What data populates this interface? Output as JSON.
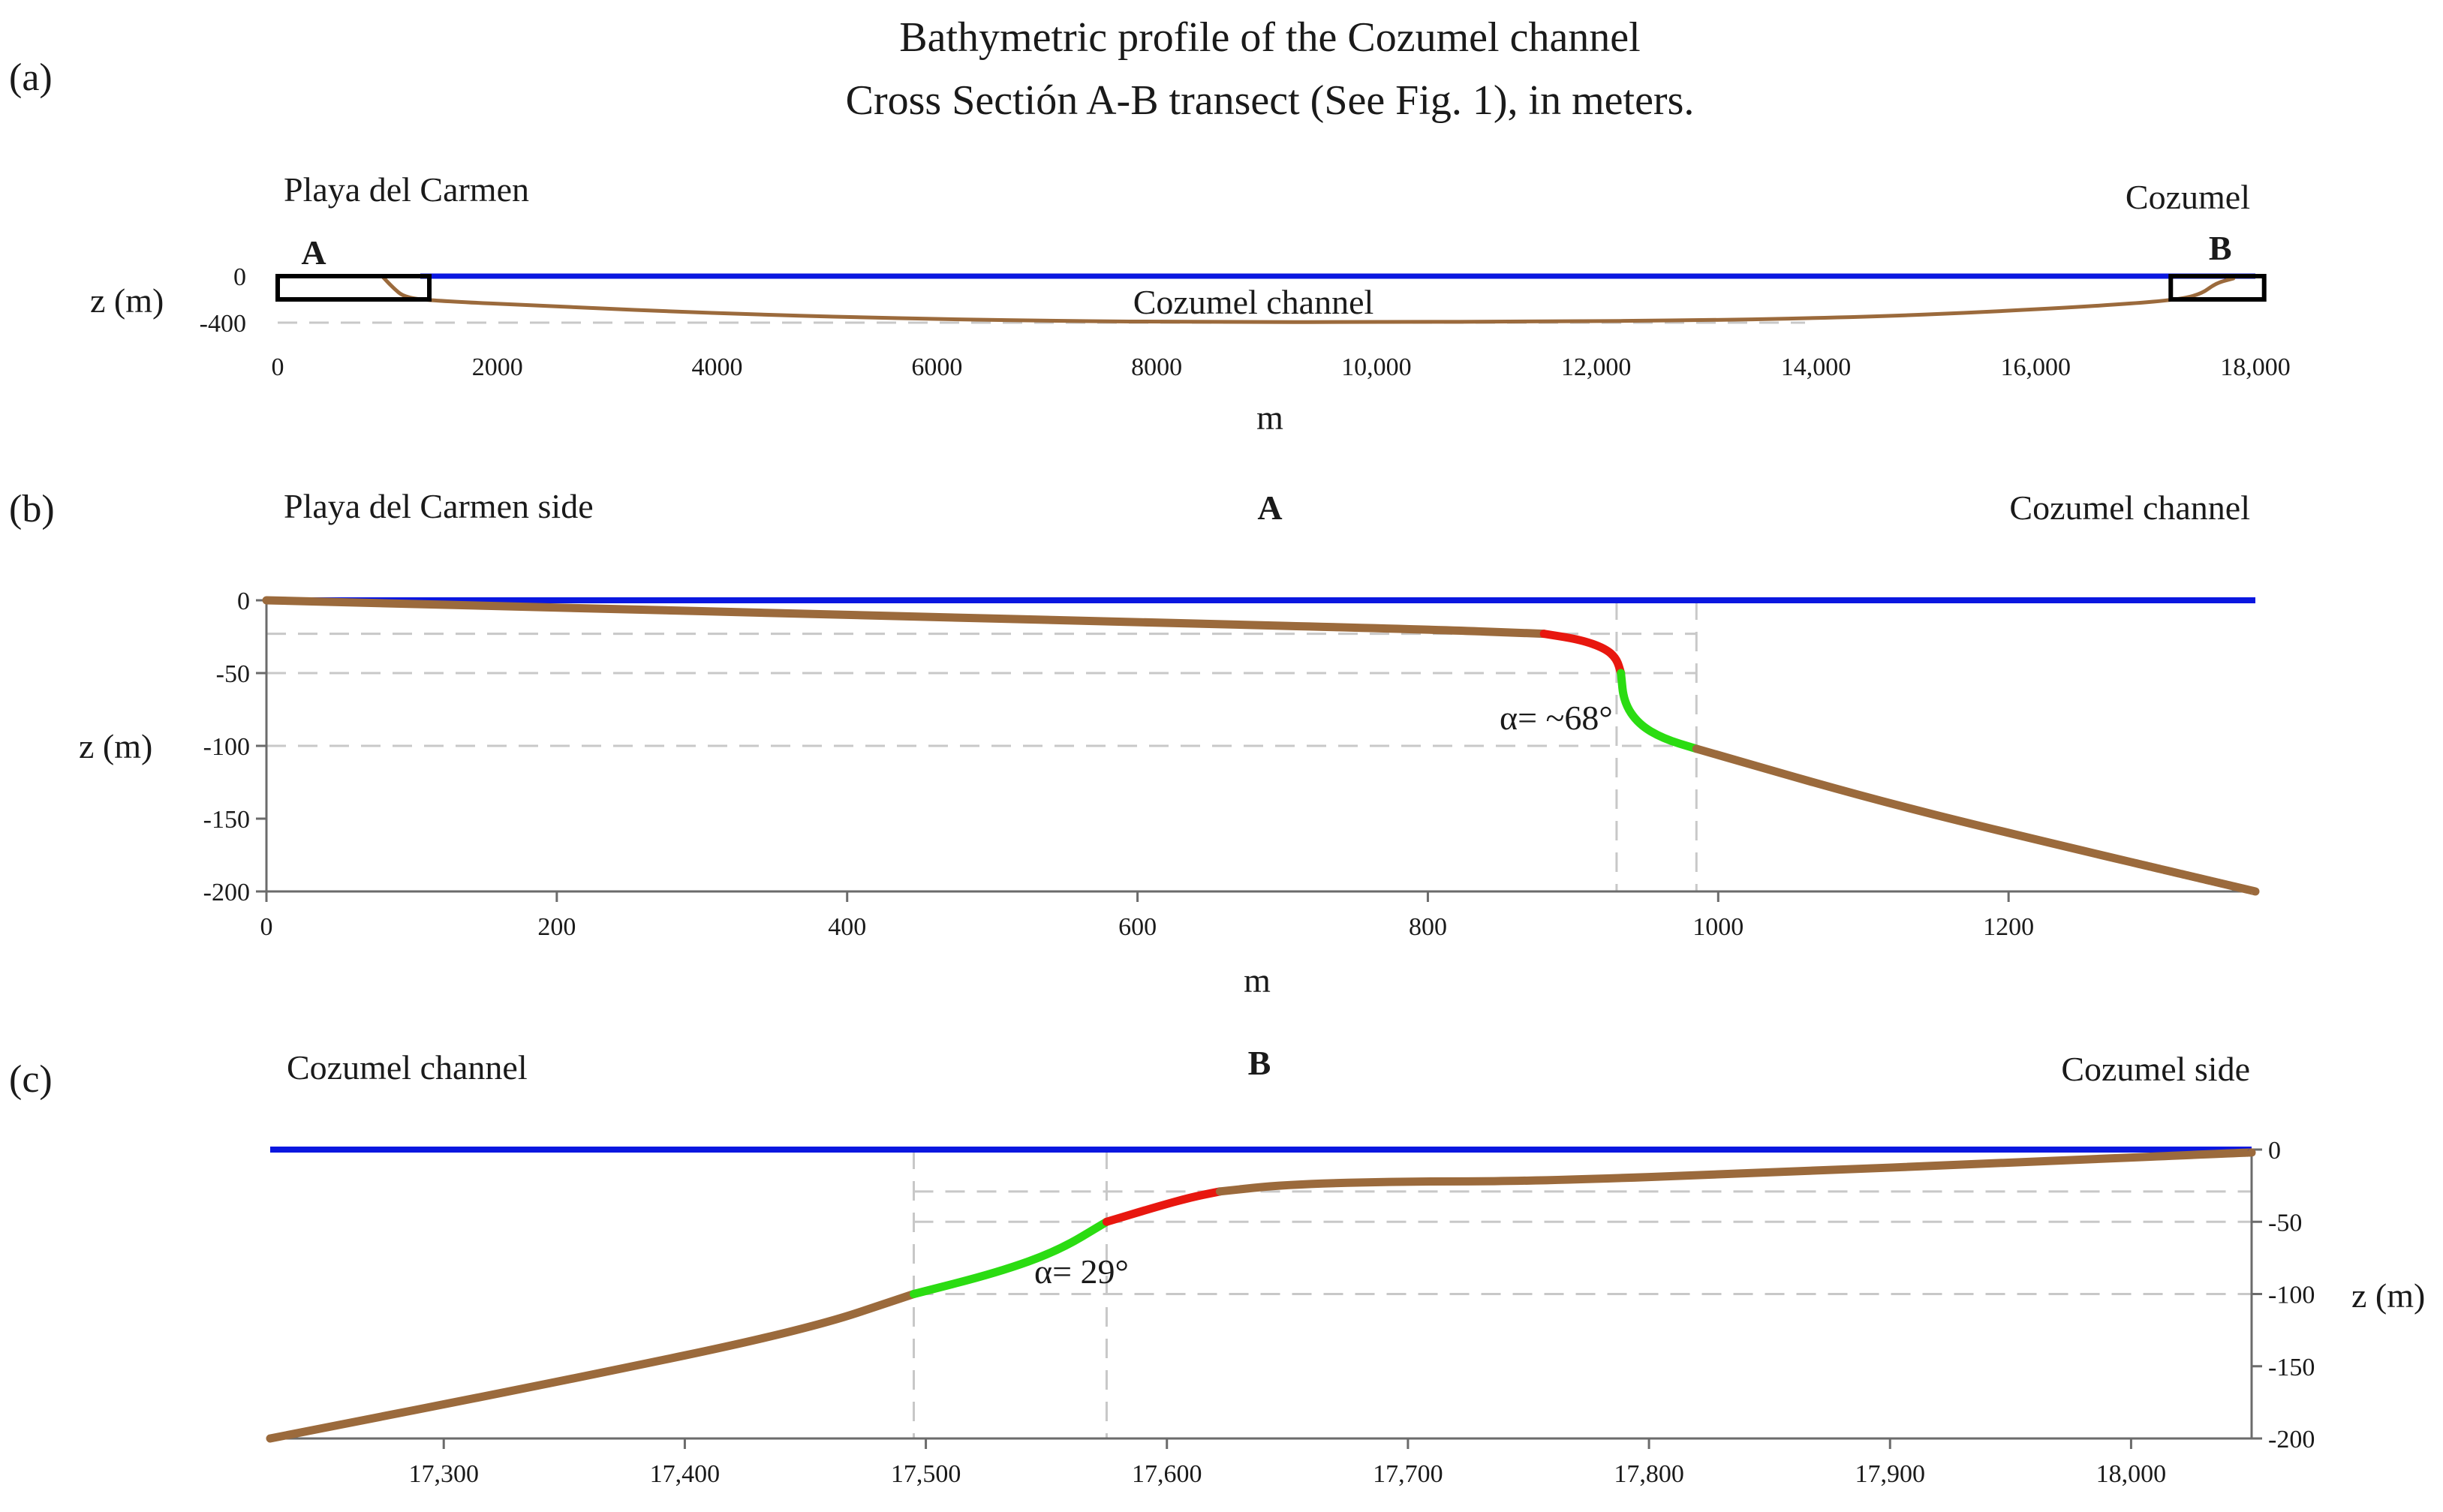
{
  "title_line1": "Bathymetric profile of the Cozumel channel",
  "title_line2": "Cross Sectión A-B transect (See Fig. 1), in meters.",
  "chart_data": [
    {
      "id": "a",
      "type": "line",
      "panel_label": "(a)",
      "left_label": "Playa del Carmen",
      "right_label": "Cozumel",
      "center_annotation": "Cozumel channel",
      "marker_A": "A",
      "marker_B": "B",
      "ylabel": "z (m)",
      "xlabel": "m",
      "xlim": [
        0,
        18000
      ],
      "ylim": [
        -400,
        0
      ],
      "x_ticks": [
        "0",
        "2000",
        "4000",
        "6000",
        "8000",
        "10,000",
        "12,000",
        "14,000",
        "16,000",
        "18,000"
      ],
      "x_tick_values": [
        0,
        2000,
        4000,
        6000,
        8000,
        10000,
        12000,
        14000,
        16000,
        18000
      ],
      "y_ticks": [
        "0",
        "-400"
      ],
      "y_tick_values": [
        0,
        -400
      ],
      "sea_level": 0,
      "guide_depths": [
        -400
      ],
      "box_A": {
        "x0": 0,
        "x1": 1380,
        "z0": 0,
        "z1": -200
      },
      "box_B": {
        "x0": 17230,
        "x1": 18080,
        "z0": 0,
        "z1": -200
      },
      "series": [
        {
          "name": "seabed",
          "color": "#9b6a3c",
          "x": [
            950,
            1050,
            1150,
            1380,
            2500,
            4000,
            5500,
            7000,
            8500,
            10000,
            11500,
            13000,
            14500,
            15500,
            16500,
            17230,
            17500,
            17640,
            17800
          ],
          "z": [
            0,
            -100,
            -180,
            -210,
            -260,
            -320,
            -360,
            -385,
            -395,
            -395,
            -390,
            -380,
            -350,
            -310,
            -260,
            -210,
            -160,
            -60,
            -20
          ]
        }
      ]
    },
    {
      "id": "b",
      "type": "line",
      "panel_label": "(b)",
      "left_label": "Playa del Carmen side",
      "center_label": "A",
      "right_label": "Cozumel channel",
      "ylabel": "z (m)",
      "xlabel": "m",
      "xlim": [
        0,
        1370
      ],
      "ylim": [
        -200,
        0
      ],
      "x_ticks": [
        "0",
        "200",
        "400",
        "600",
        "800",
        "1000",
        "1200"
      ],
      "x_tick_values": [
        0,
        200,
        400,
        600,
        800,
        1000,
        1200
      ],
      "y_ticks": [
        "0",
        "-50",
        "-100",
        "-150",
        "-200"
      ],
      "y_tick_values": [
        0,
        -50,
        -100,
        -150,
        -200
      ],
      "sea_level": 0,
      "guide_depths": [
        -23,
        -50,
        -100
      ],
      "guide_verticals": [
        930,
        985
      ],
      "angle_annotation": "α= ~68°",
      "series": [
        {
          "name": "shelf",
          "color": "#9b6a3c",
          "x": [
            0,
            200,
            400,
            600,
            800,
            880
          ],
          "z": [
            0,
            -5,
            -10,
            -15,
            -20,
            -23
          ]
        },
        {
          "name": "break-upper",
          "color": "#e8170f",
          "x": [
            880,
            905,
            922,
            930,
            933
          ],
          "z": [
            -23,
            -27,
            -33,
            -40,
            -50
          ]
        },
        {
          "name": "escarpment",
          "color": "#2bdc12",
          "x": [
            933,
            935,
            945,
            962,
            985
          ],
          "z": [
            -50,
            -70,
            -85,
            -95,
            -102
          ]
        },
        {
          "name": "slope",
          "color": "#9b6a3c",
          "x": [
            985,
            1100,
            1200,
            1370
          ],
          "z": [
            -102,
            -135,
            -160,
            -200
          ]
        }
      ]
    },
    {
      "id": "c",
      "type": "line",
      "panel_label": "(c)",
      "left_label": "Cozumel channel",
      "center_label": "B",
      "right_label": "Cozumel side",
      "ylabel": "z (m)",
      "xlabel": "",
      "xlim": [
        17228,
        18050
      ],
      "ylim": [
        -200,
        0
      ],
      "x_ticks": [
        "17,300",
        "17,400",
        "17,500",
        "17,600",
        "17,700",
        "17,800",
        "17,900",
        "18,000"
      ],
      "x_tick_values": [
        17300,
        17400,
        17500,
        17600,
        17700,
        17800,
        17900,
        18000
      ],
      "y_ticks": [
        "0",
        "-50",
        "-100",
        "-150",
        "-200"
      ],
      "y_tick_values": [
        0,
        -50,
        -100,
        -150,
        -200
      ],
      "sea_level": 0,
      "guide_depths": [
        -29,
        -50,
        -100
      ],
      "guide_verticals": [
        17495,
        17575
      ],
      "angle_annotation": "α= 29°",
      "series": [
        {
          "name": "slope",
          "color": "#9b6a3c",
          "x": [
            17228,
            17350,
            17450,
            17495
          ],
          "z": [
            -200,
            -160,
            -125,
            -100
          ]
        },
        {
          "name": "escarpment",
          "color": "#2bdc12",
          "x": [
            17495,
            17530,
            17555,
            17575
          ],
          "z": [
            -100,
            -85,
            -70,
            -50
          ]
        },
        {
          "name": "break-upper",
          "color": "#e8170f",
          "x": [
            17575,
            17595,
            17610,
            17622
          ],
          "z": [
            -50,
            -40,
            -33,
            -29
          ]
        },
        {
          "name": "shelf",
          "color": "#9b6a3c",
          "x": [
            17622,
            17650,
            17700,
            17750,
            17850,
            17950,
            18050
          ],
          "z": [
            -29,
            -24,
            -22,
            -22,
            -16,
            -9,
            -2
          ]
        }
      ]
    }
  ]
}
